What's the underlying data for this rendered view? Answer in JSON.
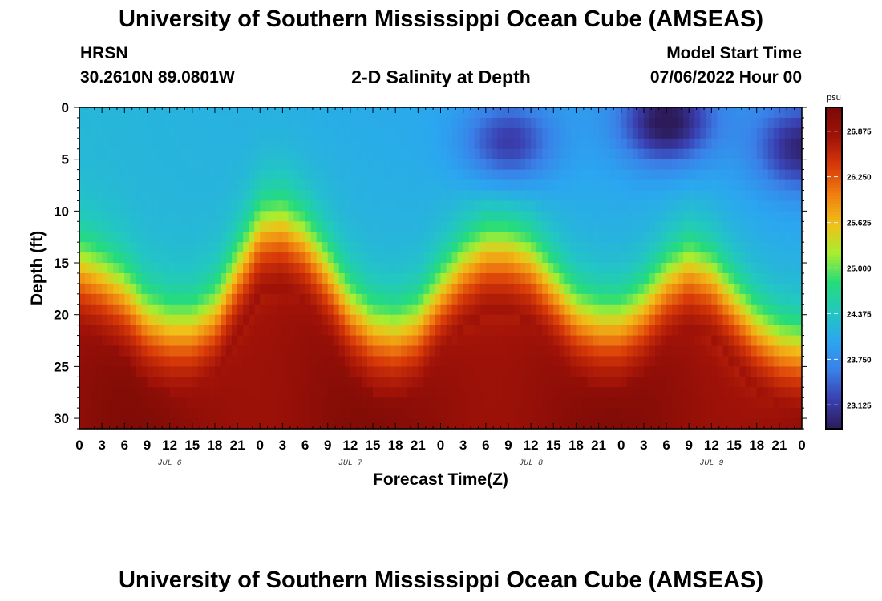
{
  "page": {
    "title": "University of Southern Mississippi Ocean Cube (AMSEAS)",
    "footer_title": "University of Southern Mississippi Ocean Cube (AMSEAS)",
    "station": "HRSN",
    "coordinates": "30.2610N  89.0801W",
    "subtitle": "2-D Salinity at Depth",
    "model_start_label": "Model Start Time",
    "model_start_value": "07/06/2022 Hour 00"
  },
  "chart_data": {
    "type": "heatmap",
    "title": "2-D Salinity at Depth",
    "xlabel": "Forecast Time(Z)",
    "ylabel": "Depth (ft)",
    "x_tick_labels": [
      "0",
      "3",
      "6",
      "9",
      "12",
      "15",
      "18",
      "21",
      "0",
      "3",
      "6",
      "9",
      "12",
      "15",
      "18",
      "21",
      "0",
      "3",
      "6",
      "9",
      "12",
      "15",
      "18",
      "21",
      "0",
      "3",
      "6",
      "9",
      "12",
      "15",
      "18",
      "21",
      "0"
    ],
    "x_range_hours": [
      0,
      96
    ],
    "day_labels": [
      {
        "label": "JUL 6",
        "hour": 12
      },
      {
        "label": "JUL 7",
        "hour": 36
      },
      {
        "label": "JUL 8",
        "hour": 60
      },
      {
        "label": "JUL 9",
        "hour": 84
      }
    ],
    "y_tick_labels": [
      "0",
      "5",
      "10",
      "15",
      "20",
      "25",
      "30"
    ],
    "y_range_ft": [
      0,
      31
    ],
    "y_inverted": true,
    "colorbar": {
      "unit": "psu",
      "range": [
        22.8,
        27.2
      ],
      "tick_labels": [
        "26.875",
        "26.250",
        "25.625",
        "25.000",
        "24.375",
        "23.750",
        "23.125"
      ],
      "colors": [
        "#2c1a5a",
        "#3a3fb0",
        "#3a80e8",
        "#2ba6f0",
        "#22c8c0",
        "#25dc7a",
        "#a8ee30",
        "#f0c018",
        "#f08010",
        "#d83a08",
        "#a01208",
        "#7a0a06"
      ]
    },
    "halocline_depth_ft": [
      {
        "hour": 0,
        "depth": 15.5
      },
      {
        "hour": 3,
        "depth": 16.5
      },
      {
        "hour": 6,
        "depth": 18
      },
      {
        "hour": 9,
        "depth": 20.5
      },
      {
        "hour": 12,
        "depth": 21.5
      },
      {
        "hour": 15,
        "depth": 21.5
      },
      {
        "hour": 18,
        "depth": 20
      },
      {
        "hour": 21,
        "depth": 16
      },
      {
        "hour": 24,
        "depth": 12
      },
      {
        "hour": 27,
        "depth": 11.5
      },
      {
        "hour": 30,
        "depth": 13
      },
      {
        "hour": 33,
        "depth": 16
      },
      {
        "hour": 36,
        "depth": 19.5
      },
      {
        "hour": 39,
        "depth": 21.5
      },
      {
        "hour": 42,
        "depth": 22
      },
      {
        "hour": 45,
        "depth": 21
      },
      {
        "hour": 48,
        "depth": 18
      },
      {
        "hour": 51,
        "depth": 15.5
      },
      {
        "hour": 54,
        "depth": 14
      },
      {
        "hour": 57,
        "depth": 14
      },
      {
        "hour": 60,
        "depth": 15
      },
      {
        "hour": 63,
        "depth": 17.5
      },
      {
        "hour": 66,
        "depth": 20
      },
      {
        "hour": 69,
        "depth": 21
      },
      {
        "hour": 72,
        "depth": 21
      },
      {
        "hour": 75,
        "depth": 19.5
      },
      {
        "hour": 78,
        "depth": 17
      },
      {
        "hour": 81,
        "depth": 15.5
      },
      {
        "hour": 84,
        "depth": 16.5
      },
      {
        "hour": 87,
        "depth": 19
      },
      {
        "hour": 90,
        "depth": 21.5
      },
      {
        "hour": 93,
        "depth": 23
      },
      {
        "hour": 96,
        "depth": 23.5
      }
    ],
    "fresh_pockets": [
      {
        "hour": 57,
        "depth": 3.5,
        "amount": 0.9
      },
      {
        "hour": 78,
        "depth": 1.5,
        "amount": 1.2
      },
      {
        "hour": 96,
        "depth": 4,
        "amount": 1.0
      }
    ],
    "surface_salinity_psu": 24.2,
    "bottom_salinity_psu": 27.0
  }
}
